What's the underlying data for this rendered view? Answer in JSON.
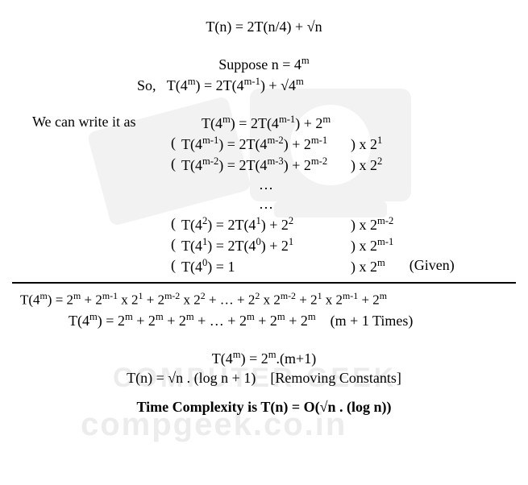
{
  "eq_main": "T(n) = 2T(n/4) + √n",
  "suppose": "Suppose n = 4",
  "suppose_sup": "m",
  "so_label": "So,",
  "so_eq_a": "T(4",
  "so_eq_b": ") = 2T(4",
  "so_eq_c": ") + √4",
  "we_label": "We can write it as",
  "r1_eq": "T(4<sup>m</sup>) = 2T(4<sup>m-1</sup>) + 2<sup>m</sup>",
  "r2_eq": "T(4<sup>m-1</sup>) = 2T(4<sup>m-2</sup>) + 2<sup>m-1</sup>",
  "r2_mult": ") x 2<sup>1</sup>",
  "r3_eq": "T(4<sup>m-2</sup>) = 2T(4<sup>m-3</sup>) + 2<sup>m-2</sup>",
  "r3_mult": ") x 2<sup>2</sup>",
  "dots": "…",
  "r4_eq": "T(4<sup>2</sup>) = 2T(4<sup>1</sup>) + 2<sup>2</sup>",
  "r4_mult": ") x 2<sup>m-2</sup>",
  "r5_eq": "T(4<sup>1</sup>) = 2T(4<sup>0</sup>) + 2<sup>1</sup>",
  "r5_mult": ") x 2<sup>m-1</sup>",
  "r6_eq": "T(4<sup>0</sup>) = 1",
  "r6_mult": ") x 2<sup>m</sup>",
  "given": "(Given)",
  "sum1": "T(4<sup>m</sup>) = 2<sup>m</sup> + 2<sup>m-1</sup> x 2<sup>1</sup> + 2<sup>m-2</sup> x 2<sup>2</sup> + … + 2<sup>2</sup> x 2<sup>m-2</sup> + 2<sup>1</sup> x 2<sup>m-1</sup> + 2<sup>m</sup>",
  "sum2a": "T(4<sup>m</sup>) = 2<sup>m</sup> + 2<sup>m</sup> + 2<sup>m</sup> + … + 2<sup>m</sup> + 2<sup>m</sup> + 2<sup>m</sup>",
  "sum2b": "(m + 1 Times)",
  "res1": "T(4<sup>m</sup>) = 2<sup>m</sup>.(m+1)",
  "res2": "T(n) = √n . (log n + 1)",
  "res2_note": "[Removing Constants]",
  "final": "Time Complexity is T(n) = O(√n . (log n))",
  "wm1": "COMPUTER GEEK",
  "wm2": "compgeek.co.in",
  "paren": "("
}
